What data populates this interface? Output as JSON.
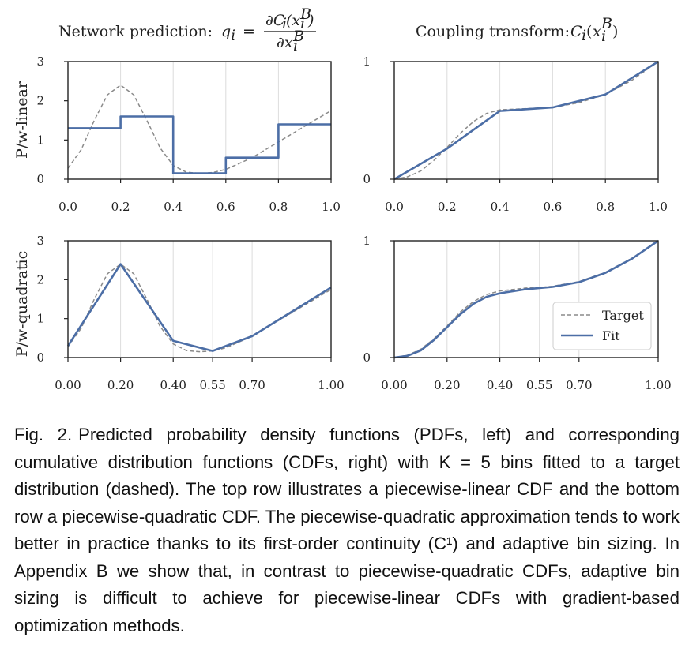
{
  "column_titles": {
    "left_prefix": "Network prediction: ",
    "left_math": "q_i = ∂C_i(x_i^B) / ∂x_i^B",
    "right_prefix": "Coupling transform: ",
    "right_math": "C_i(x_i^B)"
  },
  "row_labels": [
    "P/w-linear",
    "P/w-quadratic"
  ],
  "legend": {
    "target": "Target",
    "fit": "Fit"
  },
  "colors": {
    "fit": "#4c6ea6",
    "target": "#8a8a8a",
    "grid": "#dcdcdc",
    "axis": "#222222"
  },
  "chart_data": [
    {
      "id": "top-left",
      "type": "line",
      "ylim": [
        0,
        3
      ],
      "xlim": [
        0,
        1
      ],
      "yticks": [
        "0",
        "1",
        "2",
        "3"
      ],
      "xticks": [
        0.0,
        0.2,
        0.4,
        0.6,
        0.8,
        1.0
      ],
      "xtick_labels": [
        "0.0",
        "0.2",
        "0.4",
        "0.6",
        "0.8",
        "1.0"
      ],
      "series": [
        {
          "name": "Target",
          "style": "dashed",
          "x": [
            0,
            0.05,
            0.1,
            0.15,
            0.2,
            0.25,
            0.3,
            0.35,
            0.4,
            0.45,
            0.5,
            0.55,
            0.6,
            0.7,
            0.8,
            0.9,
            1.0
          ],
          "y": [
            0.28,
            0.75,
            1.5,
            2.15,
            2.4,
            2.15,
            1.5,
            0.8,
            0.35,
            0.18,
            0.15,
            0.17,
            0.25,
            0.55,
            0.95,
            1.35,
            1.75
          ]
        },
        {
          "name": "Fit",
          "style": "solid",
          "x": [
            0,
            0.2,
            0.2,
            0.4,
            0.4,
            0.6,
            0.6,
            0.8,
            0.8,
            1.0
          ],
          "y": [
            1.3,
            1.3,
            1.6,
            1.6,
            0.15,
            0.15,
            0.55,
            0.55,
            1.4,
            1.4
          ]
        }
      ]
    },
    {
      "id": "top-right",
      "type": "line",
      "ylim": [
        0,
        1
      ],
      "xlim": [
        0,
        1
      ],
      "yticks": [
        "0",
        "1"
      ],
      "xticks": [
        0.0,
        0.2,
        0.4,
        0.6,
        0.8,
        1.0
      ],
      "xtick_labels": [
        "0.0",
        "0.2",
        "0.4",
        "0.6",
        "0.8",
        "1.0"
      ],
      "series": [
        {
          "name": "Target",
          "style": "dashed",
          "x": [
            0,
            0.05,
            0.1,
            0.15,
            0.2,
            0.25,
            0.3,
            0.35,
            0.4,
            0.5,
            0.6,
            0.7,
            0.8,
            0.9,
            1.0
          ],
          "y": [
            0.0,
            0.02,
            0.07,
            0.16,
            0.27,
            0.39,
            0.49,
            0.56,
            0.59,
            0.6,
            0.61,
            0.65,
            0.72,
            0.84,
            1.0
          ]
        },
        {
          "name": "Fit",
          "style": "solid",
          "x": [
            0,
            0.2,
            0.4,
            0.6,
            0.8,
            1.0
          ],
          "y": [
            0.0,
            0.26,
            0.58,
            0.61,
            0.72,
            1.0
          ]
        }
      ]
    },
    {
      "id": "bottom-left",
      "type": "line",
      "ylim": [
        0,
        3
      ],
      "xlim": [
        0,
        1
      ],
      "yticks": [
        "0",
        "1",
        "2",
        "3"
      ],
      "xticks": [
        0.0,
        0.2,
        0.4,
        0.55,
        0.7,
        1.0
      ],
      "xtick_labels": [
        "0.00",
        "0.20",
        "0.40",
        "0.55",
        "0.70",
        "1.00"
      ],
      "series": [
        {
          "name": "Target",
          "style": "dashed",
          "x": [
            0,
            0.05,
            0.1,
            0.15,
            0.2,
            0.25,
            0.3,
            0.35,
            0.4,
            0.45,
            0.5,
            0.55,
            0.6,
            0.7,
            0.8,
            0.9,
            1.0
          ],
          "y": [
            0.28,
            0.75,
            1.5,
            2.15,
            2.4,
            2.15,
            1.5,
            0.8,
            0.35,
            0.18,
            0.15,
            0.17,
            0.25,
            0.55,
            0.95,
            1.35,
            1.75
          ]
        },
        {
          "name": "Fit",
          "style": "solid",
          "x": [
            0,
            0.2,
            0.4,
            0.55,
            0.7,
            1.0
          ],
          "y": [
            0.3,
            2.4,
            0.43,
            0.17,
            0.55,
            1.8
          ]
        }
      ]
    },
    {
      "id": "bottom-right",
      "type": "line",
      "ylim": [
        0,
        1
      ],
      "xlim": [
        0,
        1
      ],
      "yticks": [
        "0",
        "1"
      ],
      "xticks": [
        0.0,
        0.2,
        0.4,
        0.55,
        0.7,
        1.0
      ],
      "xtick_labels": [
        "0.00",
        "0.20",
        "0.40",
        "0.55",
        "0.70",
        "1.00"
      ],
      "legend": "lower-right",
      "series": [
        {
          "name": "Target",
          "style": "dashed",
          "x": [
            0,
            0.05,
            0.1,
            0.15,
            0.2,
            0.25,
            0.3,
            0.35,
            0.4,
            0.5,
            0.55,
            0.6,
            0.7,
            0.8,
            0.9,
            1.0
          ],
          "y": [
            0.0,
            0.02,
            0.07,
            0.16,
            0.27,
            0.39,
            0.48,
            0.54,
            0.57,
            0.595,
            0.6,
            0.61,
            0.65,
            0.73,
            0.85,
            1.0
          ]
        },
        {
          "name": "Fit",
          "style": "solid",
          "x": [
            0,
            0.05,
            0.1,
            0.15,
            0.2,
            0.25,
            0.3,
            0.35,
            0.4,
            0.5,
            0.55,
            0.6,
            0.7,
            0.8,
            0.9,
            1.0
          ],
          "y": [
            0.0,
            0.015,
            0.06,
            0.15,
            0.26,
            0.37,
            0.46,
            0.52,
            0.55,
            0.585,
            0.595,
            0.605,
            0.645,
            0.725,
            0.845,
            1.0
          ]
        }
      ]
    }
  ],
  "caption": {
    "label": "Fig. 2.",
    "text": "Predicted probability density functions (PDFs, left) and corresponding cumulative distribution functions (CDFs, right) with K = 5 bins fitted to a target distribution (dashed). The top row illustrates a piecewise-linear CDF and the bottom row a piecewise-quadratic CDF. The piecewise-quadratic approximation tends to work better in practice thanks to its first-order continuity (C¹) and adaptive bin sizing. In Appendix B we show that, in contrast to piecewise-quadratic CDFs, adaptive bin sizing is difficult to achieve for piecewise-linear CDFs with gradient-based optimization methods."
  }
}
